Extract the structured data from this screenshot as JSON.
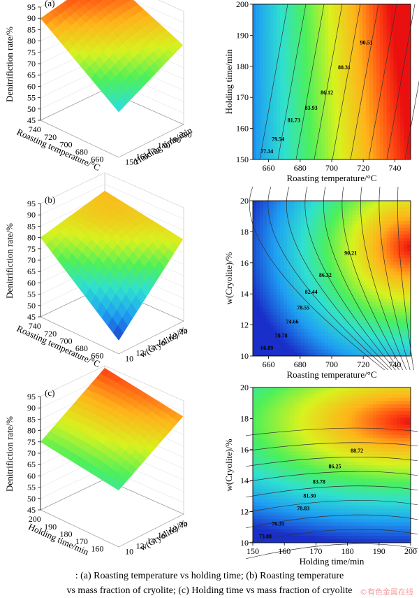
{
  "chart_data": [
    {
      "panel": "(a)",
      "type": "surface3d",
      "zlabel": "Denitrifiction rate/%",
      "xlabel": "Roasting temperature/°C",
      "ylabel": "Holding time/min",
      "z_ticks": [
        "95",
        "90",
        "85",
        "80",
        "75",
        "70",
        "65",
        "60",
        "55",
        "50",
        "45"
      ],
      "x_ticks": [
        "740",
        "720",
        "700",
        "680",
        "660"
      ],
      "y_ticks": [
        "150",
        "160",
        "170",
        "180",
        "190",
        "200"
      ],
      "corner_values": {
        "front_left": 90,
        "back_left": 96,
        "back_right": 81,
        "front_right": 65
      }
    },
    {
      "panel": "(a)",
      "type": "contour",
      "xlabel": "Roasting temperature/°C",
      "ylabel": "Holding time/min",
      "x_ticks": [
        "660",
        "680",
        "700",
        "720",
        "740"
      ],
      "y_ticks": [
        "150",
        "160",
        "170",
        "180",
        "190",
        "200"
      ],
      "xlim": [
        650,
        750
      ],
      "ylim": [
        150,
        200
      ],
      "contour_labels": [
        {
          "text": "77.34",
          "x": 655,
          "y": 152
        },
        {
          "text": "79.54",
          "x": 662,
          "y": 156
        },
        {
          "text": "81.73",
          "x": 672,
          "y": 162
        },
        {
          "text": "83.93",
          "x": 683,
          "y": 166
        },
        {
          "text": "86.12",
          "x": 693,
          "y": 171
        },
        {
          "text": "88.31",
          "x": 704,
          "y": 179
        },
        {
          "text": "90.51",
          "x": 718,
          "y": 187
        }
      ]
    },
    {
      "panel": "(b)",
      "type": "surface3d",
      "zlabel": "Denitrifiction rate/%",
      "xlabel": "Roasting temperature/°C",
      "ylabel": "w(Cryolite)/%",
      "z_ticks": [
        "95",
        "90",
        "85",
        "80",
        "75",
        "70",
        "65",
        "60",
        "55",
        "50",
        "45"
      ],
      "x_ticks": [
        "740",
        "720",
        "700",
        "680",
        "660"
      ],
      "y_ticks": [
        "10",
        "12",
        "14",
        "16",
        "18",
        "20"
      ],
      "corner_values": {
        "front_left": 80,
        "back_left": 87,
        "back_right": 82,
        "front_right": 51
      }
    },
    {
      "panel": "(b)",
      "type": "contour",
      "xlabel": "Roasting temperature/°C",
      "ylabel": "w(Cryolite)/%",
      "x_ticks": [
        "660",
        "680",
        "700",
        "720",
        "740"
      ],
      "y_ticks": [
        "10",
        "12",
        "14",
        "16",
        "18",
        "20"
      ],
      "xlim": [
        650,
        750
      ],
      "ylim": [
        10,
        20
      ],
      "contour_labels": [
        {
          "text": "66.89",
          "x": 655,
          "y": 10.4
        },
        {
          "text": "70.78",
          "x": 664,
          "y": 11.2
        },
        {
          "text": "74.66",
          "x": 671,
          "y": 12.1
        },
        {
          "text": "78.55",
          "x": 678,
          "y": 13.0
        },
        {
          "text": "82.44",
          "x": 683,
          "y": 14.0
        },
        {
          "text": "86.32",
          "x": 692,
          "y": 15.1
        },
        {
          "text": "90.21",
          "x": 708,
          "y": 16.5
        }
      ]
    },
    {
      "panel": "(c)",
      "type": "surface3d",
      "zlabel": "Denitrifiction rate/%",
      "xlabel": "Holding time/min",
      "ylabel": "w(Cryolite)/%",
      "z_ticks": [
        "95",
        "90",
        "85",
        "80",
        "75",
        "70",
        "65",
        "60",
        "55",
        "50",
        "45"
      ],
      "x_ticks": [
        "200",
        "190",
        "180",
        "170",
        "160"
      ],
      "y_ticks": [
        "10",
        "12",
        "14",
        "16",
        "18",
        "20"
      ],
      "corner_values": {
        "front_left": 75,
        "back_left": 94,
        "back_right": 89,
        "front_right": 70
      }
    },
    {
      "panel": "(c)",
      "type": "contour",
      "xlabel": "Holding time/min",
      "ylabel": "w(Cryolite)/%",
      "x_ticks": [
        "150",
        "160",
        "170",
        "180",
        "190",
        "200"
      ],
      "y_ticks": [
        "10",
        "12",
        "14",
        "16",
        "18",
        "20"
      ],
      "xlim": [
        150,
        200
      ],
      "ylim": [
        10,
        20
      ],
      "contour_labels": [
        {
          "text": "73.88",
          "x": 152,
          "y": 10.3
        },
        {
          "text": "76.35",
          "x": 156,
          "y": 11.1
        },
        {
          "text": "78.83",
          "x": 164,
          "y": 12.1
        },
        {
          "text": "81.30",
          "x": 166,
          "y": 12.9
        },
        {
          "text": "83.78",
          "x": 169,
          "y": 13.8
        },
        {
          "text": "86.25",
          "x": 174,
          "y": 14.8
        },
        {
          "text": "88.72",
          "x": 181,
          "y": 15.8
        }
      ]
    }
  ],
  "caption": {
    "line1": ": (a) Roasting temperature vs holding time; (b) Roasting temperature",
    "line2": "vs mass fraction of cryolite; (c) Holding time vs mass fraction of cryolite"
  },
  "watermark": "©有色金属在线"
}
